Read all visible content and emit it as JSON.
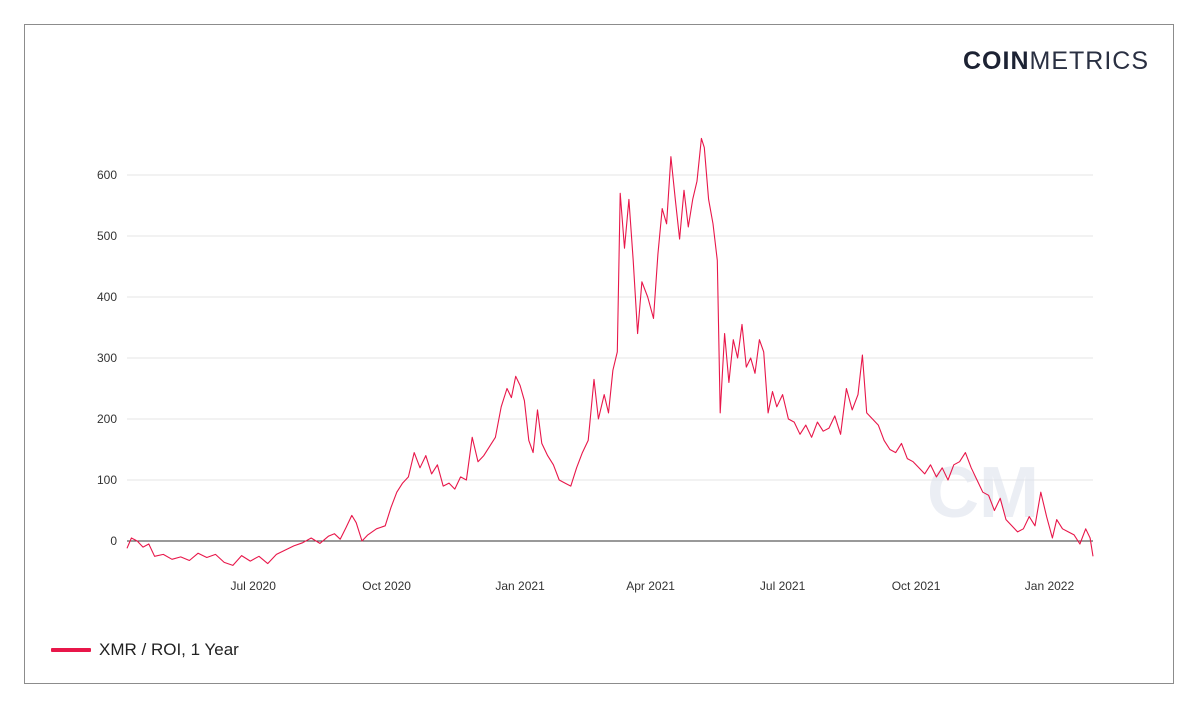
{
  "brand": {
    "logo_bold": "COIN",
    "logo_light": "METRICS",
    "watermark": "CM"
  },
  "legend": {
    "label": "XMR / ROI, 1 Year",
    "color": "#e8174a"
  },
  "chart_data": {
    "type": "line",
    "title": "",
    "xlabel": "",
    "ylabel": "",
    "ylim": [
      -45,
      700
    ],
    "yticks": [
      0,
      100,
      200,
      300,
      400,
      500,
      600
    ],
    "xticks": [
      {
        "date": "2020-07-01",
        "label": "Jul 2020"
      },
      {
        "date": "2020-10-01",
        "label": "Oct 2020"
      },
      {
        "date": "2021-01-01",
        "label": "Jan 2021"
      },
      {
        "date": "2021-04-01",
        "label": "Apr 2021"
      },
      {
        "date": "2021-07-01",
        "label": "Jul 2021"
      },
      {
        "date": "2021-10-01",
        "label": "Oct 2021"
      },
      {
        "date": "2022-01-01",
        "label": "Jan 2022"
      }
    ],
    "grid": true,
    "series": [
      {
        "name": "XMR / ROI, 1 Year",
        "color": "#e8174a",
        "points": [
          [
            "2020-04-05",
            -12
          ],
          [
            "2020-04-08",
            5
          ],
          [
            "2020-04-12",
            0
          ],
          [
            "2020-04-16",
            -10
          ],
          [
            "2020-04-20",
            -5
          ],
          [
            "2020-04-24",
            -25
          ],
          [
            "2020-04-30",
            -22
          ],
          [
            "2020-05-06",
            -30
          ],
          [
            "2020-05-12",
            -26
          ],
          [
            "2020-05-18",
            -32
          ],
          [
            "2020-05-24",
            -20
          ],
          [
            "2020-05-30",
            -27
          ],
          [
            "2020-06-05",
            -22
          ],
          [
            "2020-06-11",
            -35
          ],
          [
            "2020-06-17",
            -40
          ],
          [
            "2020-06-23",
            -24
          ],
          [
            "2020-06-29",
            -33
          ],
          [
            "2020-07-05",
            -25
          ],
          [
            "2020-07-11",
            -37
          ],
          [
            "2020-07-17",
            -22
          ],
          [
            "2020-07-23",
            -15
          ],
          [
            "2020-07-29",
            -8
          ],
          [
            "2020-08-04",
            -3
          ],
          [
            "2020-08-10",
            5
          ],
          [
            "2020-08-16",
            -4
          ],
          [
            "2020-08-22",
            8
          ],
          [
            "2020-08-26",
            12
          ],
          [
            "2020-08-30",
            3
          ],
          [
            "2020-09-03",
            22
          ],
          [
            "2020-09-07",
            42
          ],
          [
            "2020-09-10",
            30
          ],
          [
            "2020-09-14",
            0
          ],
          [
            "2020-09-18",
            10
          ],
          [
            "2020-09-24",
            20
          ],
          [
            "2020-09-30",
            25
          ],
          [
            "2020-10-04",
            55
          ],
          [
            "2020-10-08",
            80
          ],
          [
            "2020-10-12",
            95
          ],
          [
            "2020-10-16",
            105
          ],
          [
            "2020-10-20",
            145
          ],
          [
            "2020-10-24",
            120
          ],
          [
            "2020-10-28",
            140
          ],
          [
            "2020-11-01",
            110
          ],
          [
            "2020-11-05",
            125
          ],
          [
            "2020-11-09",
            90
          ],
          [
            "2020-11-13",
            95
          ],
          [
            "2020-11-17",
            85
          ],
          [
            "2020-11-21",
            105
          ],
          [
            "2020-11-25",
            100
          ],
          [
            "2020-11-29",
            170
          ],
          [
            "2020-12-03",
            130
          ],
          [
            "2020-12-07",
            140
          ],
          [
            "2020-12-11",
            155
          ],
          [
            "2020-12-15",
            170
          ],
          [
            "2020-12-19",
            220
          ],
          [
            "2020-12-23",
            250
          ],
          [
            "2020-12-26",
            235
          ],
          [
            "2020-12-29",
            270
          ],
          [
            "2021-01-01",
            255
          ],
          [
            "2021-01-04",
            230
          ],
          [
            "2021-01-07",
            165
          ],
          [
            "2021-01-10",
            145
          ],
          [
            "2021-01-13",
            215
          ],
          [
            "2021-01-16",
            160
          ],
          [
            "2021-01-20",
            140
          ],
          [
            "2021-01-24",
            125
          ],
          [
            "2021-01-28",
            100
          ],
          [
            "2021-02-01",
            95
          ],
          [
            "2021-02-05",
            90
          ],
          [
            "2021-02-09",
            120
          ],
          [
            "2021-02-13",
            145
          ],
          [
            "2021-02-17",
            165
          ],
          [
            "2021-02-21",
            265
          ],
          [
            "2021-02-24",
            200
          ],
          [
            "2021-02-28",
            240
          ],
          [
            "2021-03-03",
            210
          ],
          [
            "2021-03-06",
            280
          ],
          [
            "2021-03-09",
            310
          ],
          [
            "2021-03-11",
            570
          ],
          [
            "2021-03-14",
            480
          ],
          [
            "2021-03-17",
            560
          ],
          [
            "2021-03-20",
            460
          ],
          [
            "2021-03-23",
            340
          ],
          [
            "2021-03-26",
            425
          ],
          [
            "2021-03-30",
            400
          ],
          [
            "2021-04-03",
            365
          ],
          [
            "2021-04-06",
            470
          ],
          [
            "2021-04-09",
            545
          ],
          [
            "2021-04-12",
            520
          ],
          [
            "2021-04-15",
            630
          ],
          [
            "2021-04-18",
            560
          ],
          [
            "2021-04-21",
            495
          ],
          [
            "2021-04-24",
            575
          ],
          [
            "2021-04-27",
            515
          ],
          [
            "2021-04-30",
            560
          ],
          [
            "2021-05-03",
            590
          ],
          [
            "2021-05-06",
            660
          ],
          [
            "2021-05-08",
            645
          ],
          [
            "2021-05-11",
            560
          ],
          [
            "2021-05-14",
            520
          ],
          [
            "2021-05-17",
            460
          ],
          [
            "2021-05-19",
            210
          ],
          [
            "2021-05-22",
            340
          ],
          [
            "2021-05-25",
            260
          ],
          [
            "2021-05-28",
            330
          ],
          [
            "2021-05-31",
            300
          ],
          [
            "2021-06-03",
            355
          ],
          [
            "2021-06-06",
            285
          ],
          [
            "2021-06-09",
            300
          ],
          [
            "2021-06-12",
            275
          ],
          [
            "2021-06-15",
            330
          ],
          [
            "2021-06-18",
            310
          ],
          [
            "2021-06-21",
            210
          ],
          [
            "2021-06-24",
            245
          ],
          [
            "2021-06-27",
            220
          ],
          [
            "2021-07-01",
            240
          ],
          [
            "2021-07-05",
            200
          ],
          [
            "2021-07-09",
            195
          ],
          [
            "2021-07-13",
            175
          ],
          [
            "2021-07-17",
            190
          ],
          [
            "2021-07-21",
            170
          ],
          [
            "2021-07-25",
            195
          ],
          [
            "2021-07-29",
            180
          ],
          [
            "2021-08-02",
            185
          ],
          [
            "2021-08-06",
            205
          ],
          [
            "2021-08-10",
            175
          ],
          [
            "2021-08-14",
            250
          ],
          [
            "2021-08-18",
            215
          ],
          [
            "2021-08-22",
            240
          ],
          [
            "2021-08-25",
            305
          ],
          [
            "2021-08-28",
            210
          ],
          [
            "2021-09-01",
            200
          ],
          [
            "2021-09-05",
            190
          ],
          [
            "2021-09-09",
            165
          ],
          [
            "2021-09-13",
            150
          ],
          [
            "2021-09-17",
            145
          ],
          [
            "2021-09-21",
            160
          ],
          [
            "2021-09-25",
            135
          ],
          [
            "2021-09-29",
            130
          ],
          [
            "2021-10-03",
            120
          ],
          [
            "2021-10-07",
            110
          ],
          [
            "2021-10-11",
            125
          ],
          [
            "2021-10-15",
            105
          ],
          [
            "2021-10-19",
            120
          ],
          [
            "2021-10-23",
            100
          ],
          [
            "2021-10-27",
            125
          ],
          [
            "2021-10-31",
            130
          ],
          [
            "2021-11-04",
            145
          ],
          [
            "2021-11-08",
            120
          ],
          [
            "2021-11-12",
            100
          ],
          [
            "2021-11-16",
            80
          ],
          [
            "2021-11-20",
            75
          ],
          [
            "2021-11-24",
            50
          ],
          [
            "2021-11-28",
            70
          ],
          [
            "2021-12-02",
            35
          ],
          [
            "2021-12-06",
            25
          ],
          [
            "2021-12-10",
            15
          ],
          [
            "2021-12-14",
            20
          ],
          [
            "2021-12-18",
            40
          ],
          [
            "2021-12-22",
            25
          ],
          [
            "2021-12-26",
            80
          ],
          [
            "2021-12-30",
            40
          ],
          [
            "2022-01-03",
            5
          ],
          [
            "2022-01-06",
            35
          ],
          [
            "2022-01-10",
            20
          ],
          [
            "2022-01-14",
            15
          ],
          [
            "2022-01-18",
            10
          ],
          [
            "2022-01-22",
            -5
          ],
          [
            "2022-01-26",
            20
          ],
          [
            "2022-01-29",
            5
          ],
          [
            "2022-01-31",
            -25
          ]
        ]
      }
    ]
  }
}
